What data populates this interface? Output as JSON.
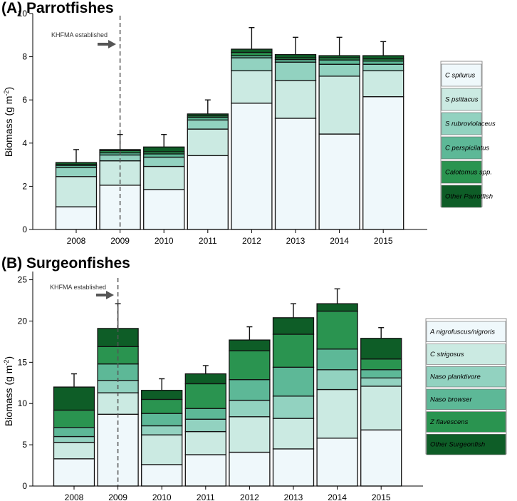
{
  "colors": {
    "parrot": [
      "#eff8fb",
      "#cbeae2",
      "#92d2c0",
      "#5db897",
      "#2a9450",
      "#0e5d27"
    ],
    "surgeon": [
      "#eff8fb",
      "#cbeae2",
      "#92d2c0",
      "#5db897",
      "#2a9450",
      "#0e5d27"
    ],
    "annotation": "#555555"
  },
  "chart_data": [
    {
      "type": "bar",
      "stacked": true,
      "title": "(A) Parrotfishes",
      "xlabel": "",
      "ylabel": "Biomass (g m",
      "ylabel_sup": "-2",
      "ylabel_end": ")",
      "ylim": [
        0,
        10
      ],
      "yticks": [
        0,
        2,
        4,
        6,
        8,
        10
      ],
      "categories": [
        "2008",
        "2009",
        "2010",
        "2011",
        "2012",
        "2013",
        "2014",
        "2015"
      ],
      "series": [
        {
          "name": "C spilurus",
          "values": [
            1.05,
            2.05,
            1.85,
            3.42,
            5.85,
            5.15,
            4.42,
            6.15
          ]
        },
        {
          "name": "S psittacus",
          "values": [
            1.4,
            1.13,
            1.07,
            1.23,
            1.5,
            1.75,
            2.68,
            1.2
          ]
        },
        {
          "name": "S rubroviolaceus",
          "values": [
            0.42,
            0.27,
            0.43,
            0.42,
            0.6,
            0.85,
            0.55,
            0.3
          ]
        },
        {
          "name": "C perspicilatus",
          "values": [
            0.1,
            0.1,
            0.15,
            0.12,
            0.1,
            0.12,
            0.2,
            0.15
          ]
        },
        {
          "name": "Calotomus spp.",
          "values": [
            0.03,
            0.1,
            0.1,
            0.07,
            0.15,
            0.08,
            0.1,
            0.1
          ]
        },
        {
          "name": "Other Parrotfish",
          "values": [
            0.1,
            0.05,
            0.22,
            0.09,
            0.15,
            0.15,
            0.1,
            0.15
          ]
        }
      ],
      "error_top": [
        3.7,
        4.4,
        4.4,
        6.0,
        9.35,
        8.9,
        8.9,
        8.7
      ],
      "legend_position": "right",
      "annotation": {
        "text": "KHFMA established",
        "x": "2009"
      }
    },
    {
      "type": "bar",
      "stacked": true,
      "title": "(B) Surgeonfishes",
      "xlabel": "",
      "ylabel": "Biomass (g m",
      "ylabel_sup": "-2",
      "ylabel_end": ")",
      "ylim": [
        0,
        26
      ],
      "yticks": [
        0,
        5,
        10,
        15,
        20,
        25
      ],
      "categories": [
        "2008",
        "2009",
        "2010",
        "2011",
        "2012",
        "2013",
        "2014",
        "2015"
      ],
      "series": [
        {
          "name": "A nigrofuscus/nigroris",
          "values": [
            3.3,
            8.7,
            2.6,
            3.8,
            4.1,
            4.5,
            5.8,
            6.8
          ]
        },
        {
          "name": "C strigosus",
          "values": [
            2.0,
            2.6,
            3.6,
            2.8,
            4.3,
            3.7,
            5.9,
            5.3
          ]
        },
        {
          "name": "Naso planktivore",
          "values": [
            0.7,
            1.5,
            1.1,
            1.5,
            2.0,
            2.7,
            2.4,
            1.0
          ]
        },
        {
          "name": "Naso browser",
          "values": [
            1.1,
            2.0,
            1.5,
            1.3,
            2.5,
            3.5,
            2.5,
            1.0
          ]
        },
        {
          "name": "Z flavescens",
          "values": [
            2.1,
            2.1,
            1.7,
            3.0,
            3.5,
            4.0,
            4.6,
            1.3
          ]
        },
        {
          "name": "Other Surgeonfish",
          "values": [
            2.8,
            2.2,
            1.1,
            1.2,
            1.3,
            2.0,
            0.9,
            2.5
          ]
        }
      ],
      "error_top": [
        13.6,
        22.1,
        13.0,
        14.6,
        19.3,
        22.1,
        23.9,
        19.2
      ],
      "legend_position": "right",
      "annotation": {
        "text": "KHFMA established",
        "x": "2009"
      }
    }
  ]
}
